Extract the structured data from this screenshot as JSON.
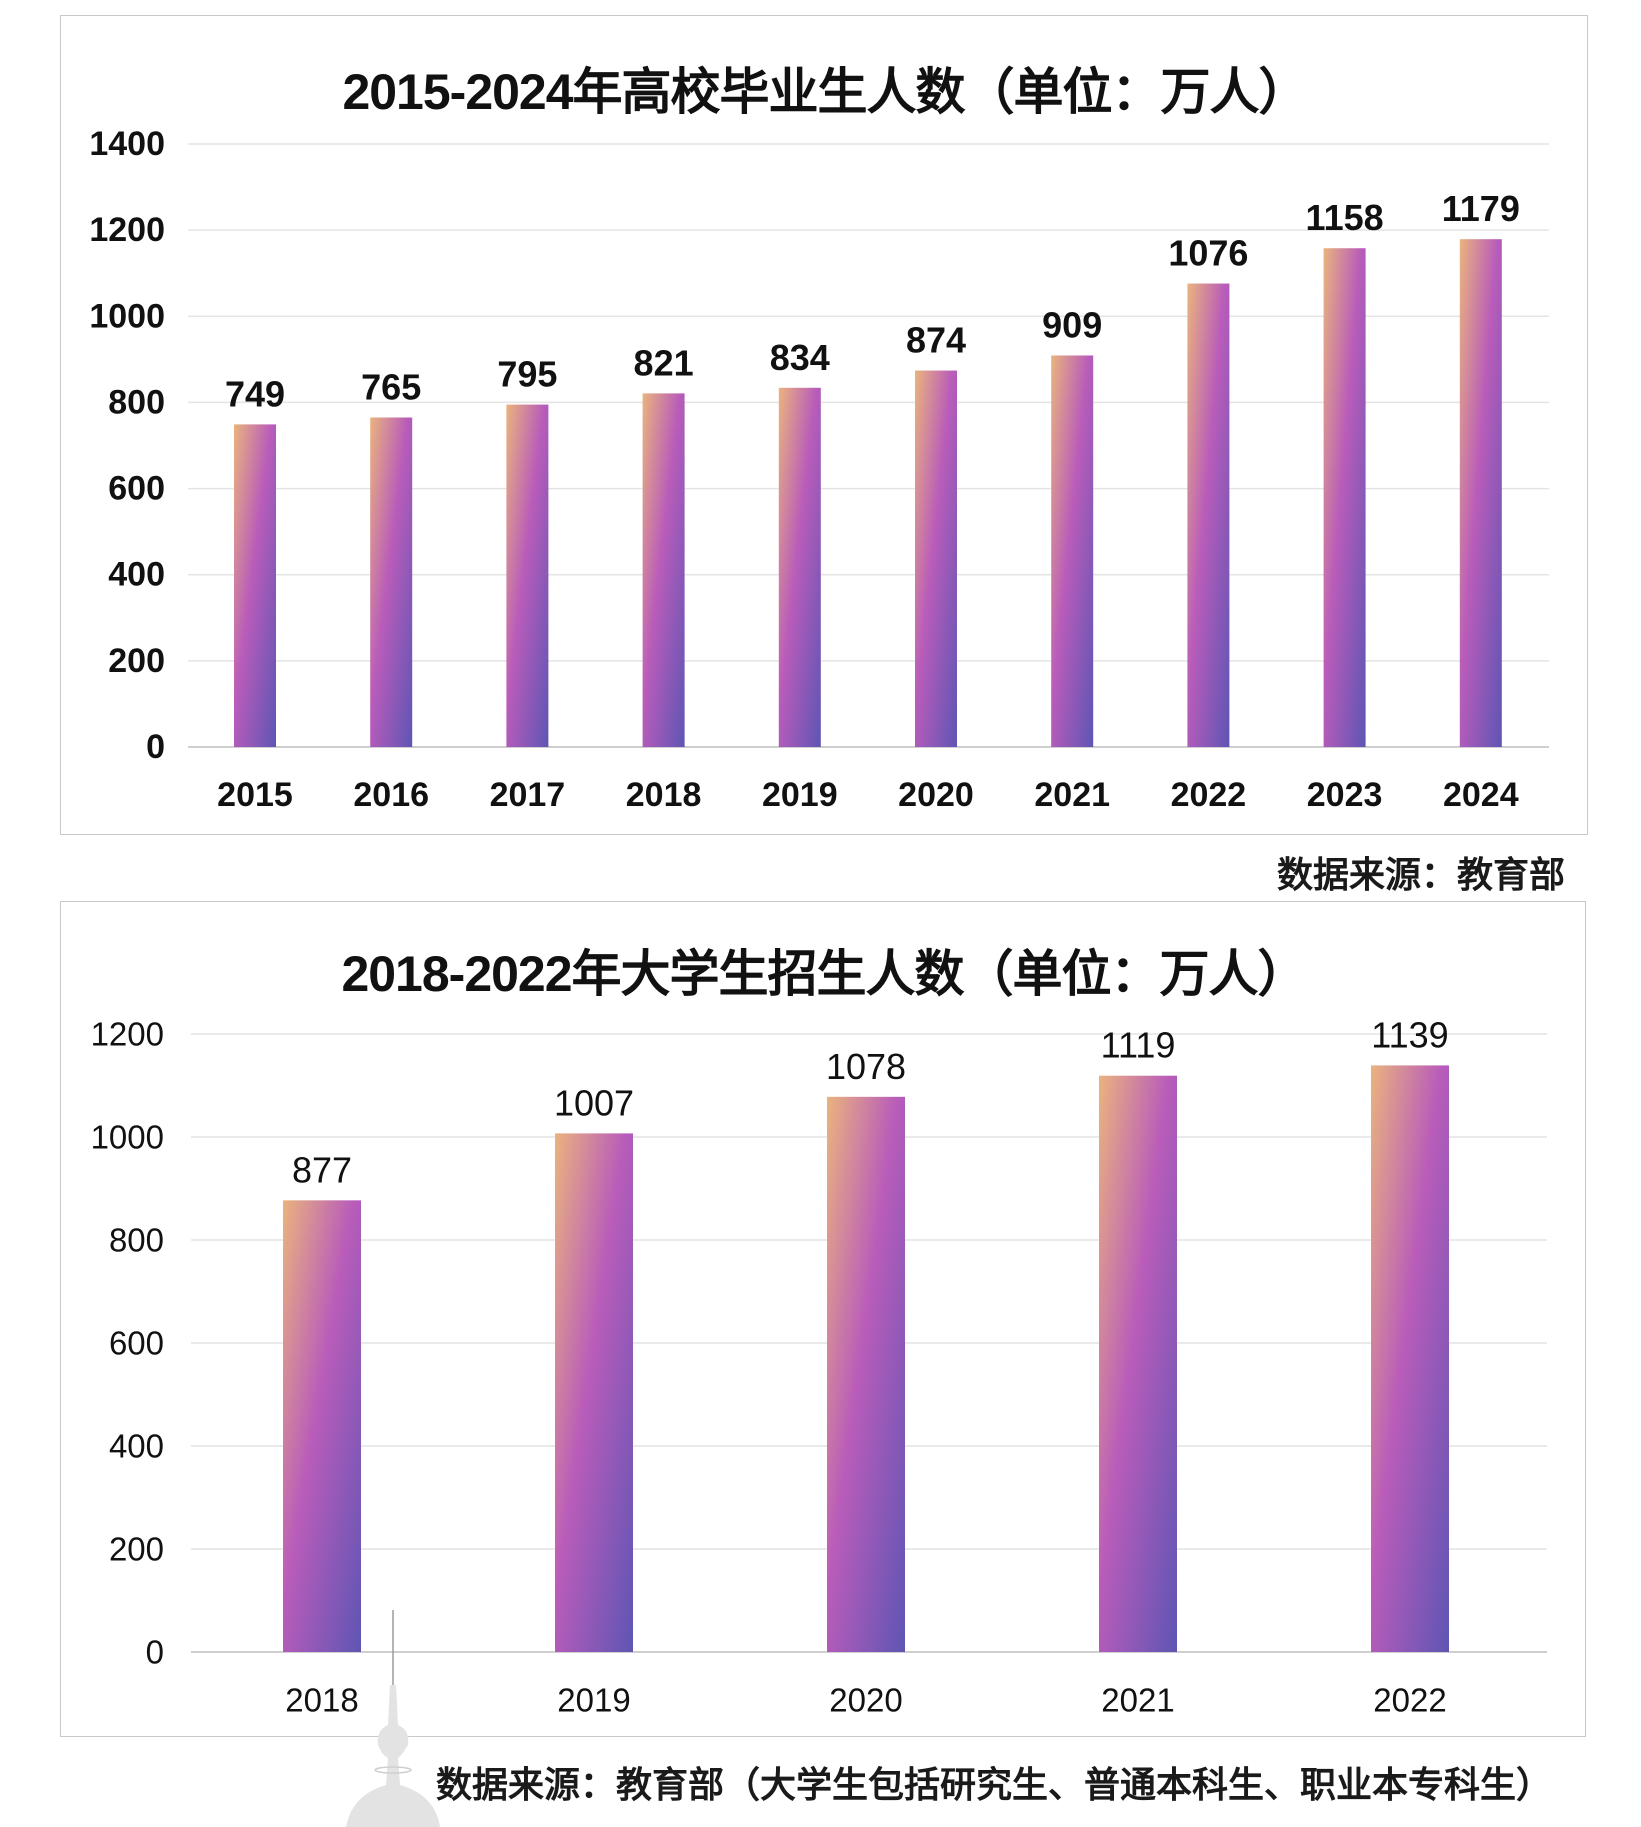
{
  "chart_data": [
    {
      "type": "bar",
      "title": "2015-2024年高校毕业生人数（单位：万人）",
      "xlabel": "",
      "ylabel": "",
      "categories": [
        "2015",
        "2016",
        "2017",
        "2018",
        "2019",
        "2020",
        "2021",
        "2022",
        "2023",
        "2024"
      ],
      "values": [
        749,
        765,
        795,
        821,
        834,
        874,
        909,
        1076,
        1158,
        1179
      ],
      "ylim": [
        0,
        1400
      ],
      "yticks": [
        0,
        200,
        400,
        600,
        800,
        1000,
        1200,
        1400
      ],
      "grid": true,
      "data_labels": true,
      "source": "数据来源：教育部"
    },
    {
      "type": "bar",
      "title": "2018-2022年大学生招生人数（单位：万人）",
      "xlabel": "",
      "ylabel": "",
      "categories": [
        "2018",
        "2019",
        "2020",
        "2021",
        "2022"
      ],
      "values": [
        877,
        1007,
        1078,
        1119,
        1139
      ],
      "ylim": [
        0,
        1200
      ],
      "yticks": [
        0,
        200,
        400,
        600,
        800,
        1000,
        1200
      ],
      "grid": true,
      "data_labels": true,
      "source": "数据来源：教育部（大学生包括研究生、普通本科生、职业本专科生）"
    }
  ],
  "colors": {
    "bar_gradient": [
      "#eab37e",
      "#b95cba",
      "#5e55b4"
    ],
    "grid": "#e4e4e4",
    "axis": "#cfcfcf",
    "text": "#111111",
    "border": "#c8c8c8"
  },
  "watermark_icon": "tv-tower-icon"
}
